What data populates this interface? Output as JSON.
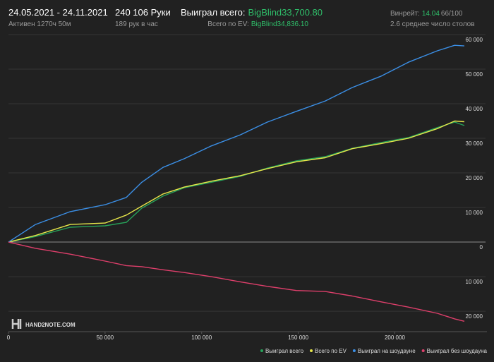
{
  "header": {
    "date_range": "24.05.2021 - 24.11.2021",
    "active": "Активен 1270ч 50м",
    "hands": "240 106 Руки",
    "hands_per_hour": "189 рук в час",
    "won_label": "Выиграл всего:",
    "won_value": "BigBlind33,700.80",
    "ev_label": "Всего по EV:",
    "ev_value": "BigBlind34,836.10",
    "winrate_label": "Винрейт:",
    "winrate_value": "14.04",
    "winrate_ratio": "66/100",
    "tables": "2.6 среднее число столов",
    "logo": "HAND2NOTE.COM"
  },
  "chart_data": {
    "type": "line",
    "x": [
      0,
      14000,
      32000,
      50000,
      61000,
      69000,
      80000,
      91000,
      105000,
      120000,
      134000,
      149000,
      164000,
      178000,
      193000,
      207000,
      222000,
      231000,
      236000
    ],
    "series": [
      {
        "name": "Выиграл всего",
        "color": "#27a35a",
        "values": [
          0,
          1600,
          4300,
          4700,
          5700,
          9800,
          13300,
          15700,
          17300,
          19000,
          21400,
          23500,
          24700,
          27100,
          28800,
          30200,
          33100,
          34700,
          33700
        ]
      },
      {
        "name": "Всего по EV",
        "color": "#e6e64a",
        "values": [
          0,
          1900,
          5100,
          5500,
          7800,
          10400,
          13900,
          15900,
          17600,
          19200,
          21200,
          23200,
          24400,
          27000,
          28500,
          30000,
          32800,
          35000,
          34800
        ]
      },
      {
        "name": "Выиграл на шоудауне",
        "color": "#3b8fe6",
        "values": [
          0,
          5100,
          8800,
          10800,
          12900,
          17300,
          21600,
          24100,
          27800,
          31000,
          34700,
          37800,
          40800,
          44700,
          48000,
          52000,
          55300,
          56900,
          56700
        ]
      },
      {
        "name": "Выиграл без шоудауна",
        "color": "#de3f6b",
        "values": [
          0,
          -1800,
          -3500,
          -5500,
          -6800,
          -7100,
          -8000,
          -8800,
          -10000,
          -11500,
          -12800,
          -14000,
          -14300,
          -15600,
          -17300,
          -18800,
          -20600,
          -22200,
          -22900
        ]
      }
    ],
    "xlim": [
      0,
      236000
    ],
    "xticks": [
      0,
      {
        "value": 50000,
        "label": "50 000"
      },
      {
        "value": 100000,
        "label": "100 000"
      },
      {
        "value": 150000,
        "label": "150 000"
      },
      {
        "value": 200000,
        "label": "200 000"
      }
    ],
    "ylim": [
      -25900,
      60400
    ],
    "yticks": [
      {
        "value": 60000,
        "label": "60 000"
      },
      {
        "value": 50000,
        "label": "50 000"
      },
      {
        "value": 40000,
        "label": "40 000"
      },
      {
        "value": 30000,
        "label": "30 000"
      },
      {
        "value": 20000,
        "label": "20 000"
      },
      {
        "value": 10000,
        "label": "10 000"
      },
      0,
      {
        "value": -10000,
        "label": "10 000"
      },
      {
        "value": -20000,
        "label": "20 000"
      }
    ],
    "grid": true,
    "legend": "bottom-right"
  }
}
